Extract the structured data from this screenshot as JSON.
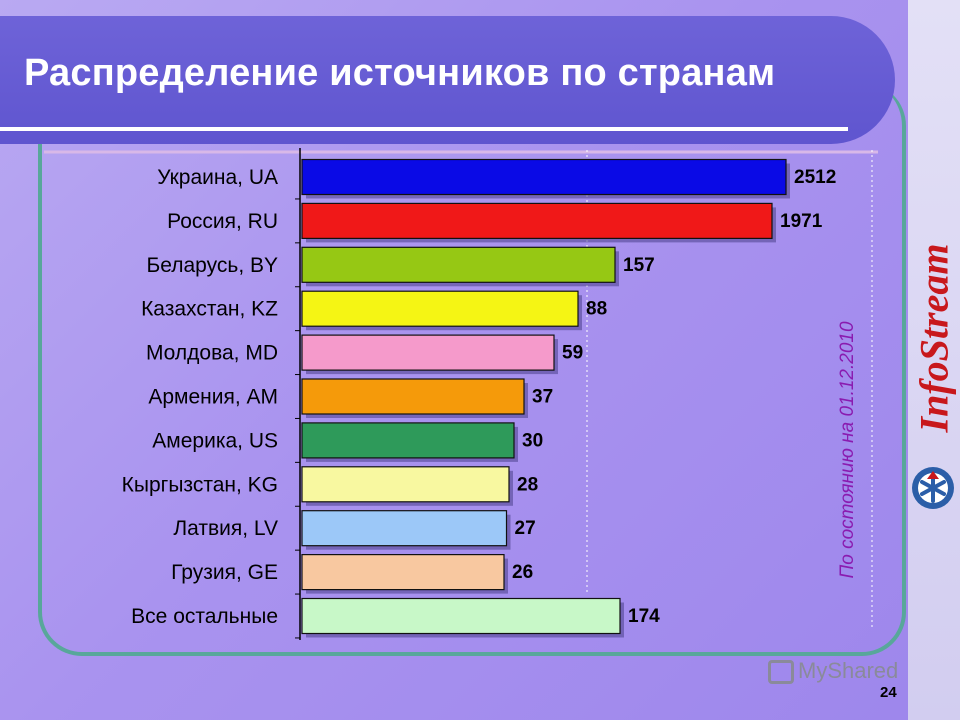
{
  "slide": {
    "title": "Распределение источников по странам",
    "stamp": "По состоянию на 01.12.2010",
    "brand": "InfoStream",
    "watermark": "MyShared",
    "page_number": "24"
  },
  "colors": {
    "title_band": "#6459d4",
    "frame": "#58a79a",
    "brand": "#c8181c",
    "stamp": "#8a1bb0"
  },
  "chart_data": {
    "type": "bar",
    "orientation": "horizontal",
    "title": "Распределение источников по странам",
    "categories": [
      "Украина, UA",
      "Россия, RU",
      "Беларусь, BY",
      "Казахстан, KZ",
      "Молдова, MD",
      "Армения, AM",
      "Америка, US",
      "Кыргызстан, KG",
      "Латвия, LV",
      "Грузия, GE",
      "Все остальные"
    ],
    "values": [
      2512,
      1971,
      157,
      88,
      59,
      37,
      30,
      28,
      27,
      26,
      174
    ],
    "value_labels": [
      "2512",
      "1971",
      "157",
      "88",
      "59",
      "37",
      "30",
      "28",
      "27",
      "26",
      "174"
    ],
    "bar_colors": [
      "#0a0ae6",
      "#f01818",
      "#96c814",
      "#f5f514",
      "#f59acb",
      "#f59a0a",
      "#2e9a5a",
      "#f8f8a0",
      "#9cc8f8",
      "#f8c8a0",
      "#c8f8c8"
    ],
    "scale": "nonlinear (broken axis)",
    "grid": "vertical",
    "legend": "none"
  }
}
